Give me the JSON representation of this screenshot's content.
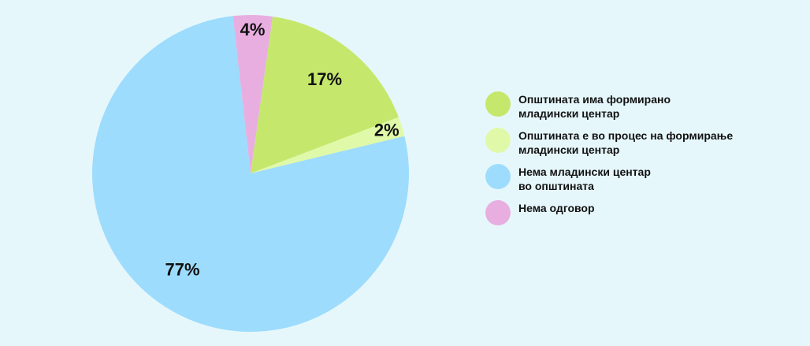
{
  "chart_data": {
    "type": "pie",
    "categories": [
      "Општината има формирано\nмладински центар",
      "Општината е во процес на формирање\nмладински центар",
      "Нема младински центар\nво општината",
      "Нема одговор"
    ],
    "values": [
      17,
      2,
      77,
      4
    ],
    "value_labels": [
      "17%",
      "2%",
      "77%",
      "4%"
    ],
    "colors": [
      "#c5e86c",
      "#e0f9a8",
      "#9ddcfd",
      "#e8aee0"
    ],
    "legend": "right"
  }
}
